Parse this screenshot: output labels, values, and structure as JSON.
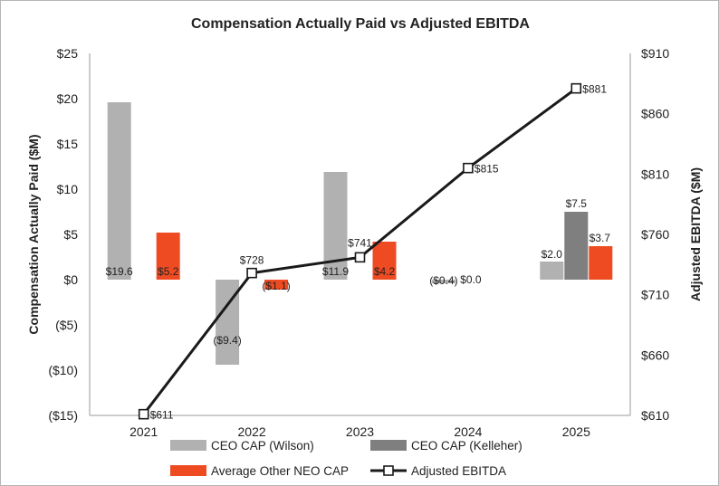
{
  "chart_data": {
    "type": "bar",
    "title": "Compensation Actually Paid vs Adjusted EBITDA",
    "categories": [
      "2021",
      "2022",
      "2023",
      "2024",
      "2025"
    ],
    "ylabel": "Compensation Actually Paid ($M)",
    "y2label": "Adjusted EBITDA ($M)",
    "ylim": [
      -15,
      25
    ],
    "y2lim": [
      610,
      910
    ],
    "yticks": [
      "($15)",
      "($10)",
      "($5)",
      "$0",
      "$5",
      "$10",
      "$15",
      "$20",
      "$25"
    ],
    "y2ticks": [
      "$610",
      "$660",
      "$710",
      "$760",
      "$810",
      "$860",
      "$910"
    ],
    "grid": false,
    "legend_position": "bottom",
    "series": [
      {
        "name": "CEO CAP (Wilson)",
        "kind": "bar",
        "axis": "left",
        "color": "#b1b1b1",
        "values": [
          19.6,
          -9.4,
          11.9,
          -0.4,
          2.0
        ],
        "labels": [
          "$19.6",
          "($9.4)",
          "$11.9",
          "($0.4)",
          "$2.0"
        ]
      },
      {
        "name": "CEO CAP (Kelleher)",
        "kind": "bar",
        "axis": "left",
        "color": "#7f7f7f",
        "values": [
          null,
          null,
          null,
          0.0,
          7.5
        ],
        "labels": [
          "",
          "",
          "",
          "$0.0",
          "$7.5"
        ]
      },
      {
        "name": "Average Other NEO CAP",
        "kind": "bar",
        "axis": "left",
        "color": "#ef4b22",
        "values": [
          5.2,
          -1.1,
          4.2,
          null,
          3.7
        ],
        "labels": [
          "$5.2",
          "($1.1)",
          "$4.2",
          "",
          "$3.7"
        ]
      },
      {
        "name": "Adjusted EBITDA",
        "kind": "line",
        "axis": "right",
        "color": "#1a1a1a",
        "values": [
          611,
          728,
          741,
          815,
          881
        ],
        "labels": [
          "$611",
          "$728",
          "$741",
          "$815",
          "$881"
        ]
      }
    ]
  }
}
